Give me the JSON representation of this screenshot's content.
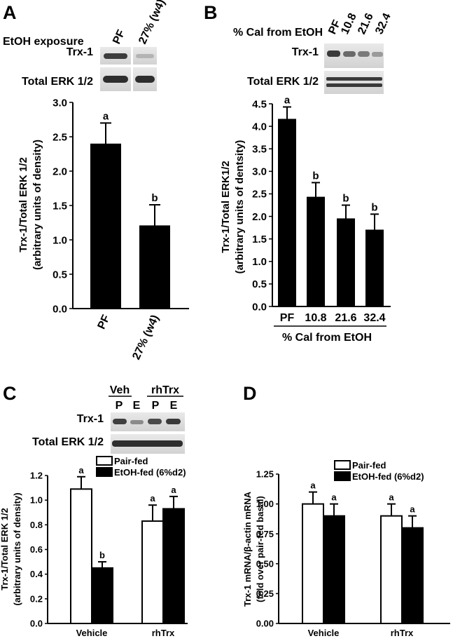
{
  "panels": {
    "A": {
      "letter": "A",
      "exposure_label": "EtOH exposure",
      "lane_labels": [
        "PF",
        "27% (w4)"
      ],
      "blot_labels": [
        "Trx-1",
        "Total ERK 1/2"
      ]
    },
    "B": {
      "letter": "B",
      "header_label": "% Cal from EtOH",
      "lane_labels": [
        "PF",
        "10.8",
        "21.6",
        "32.4"
      ],
      "blot_labels": [
        "Trx-1",
        "Total ERK 1/2"
      ]
    },
    "C": {
      "letter": "C",
      "group_labels": [
        "Veh",
        "rhTrx"
      ],
      "lane_labels": [
        "P",
        "E",
        "P",
        "E"
      ],
      "blot_labels": [
        "Trx-1",
        "Total ERK 1/2"
      ]
    },
    "D": {
      "letter": "D"
    }
  },
  "chart_data": [
    {
      "panel": "A",
      "type": "bar",
      "categories": [
        "PF",
        "27% (w4)"
      ],
      "values": [
        2.39,
        1.2
      ],
      "errors": [
        0.31,
        0.31
      ],
      "significance": [
        "a",
        "b"
      ],
      "ylabel_lines": [
        "Trx-1/Total ERK 1/2",
        "(arbitrary units of density)"
      ],
      "ylim": [
        0,
        3.0
      ],
      "yticks": [
        "0.0",
        "0.5",
        "1.0",
        "1.5",
        "2.0",
        "2.5",
        "3.0"
      ],
      "colors": {
        "bar": "#000000"
      }
    },
    {
      "panel": "B",
      "type": "bar",
      "categories": [
        "PF",
        "10.8",
        "21.6",
        "32.4"
      ],
      "values": [
        4.15,
        2.42,
        1.94,
        1.69
      ],
      "errors": [
        0.28,
        0.33,
        0.31,
        0.36
      ],
      "significance": [
        "a",
        "b",
        "b",
        "b"
      ],
      "xlabel": "% Cal from EtOH",
      "ylabel_lines": [
        "Trx-1/Total ERK1/2",
        "(arbitrary  units of dentsity)"
      ],
      "ylim": [
        0,
        4.5
      ],
      "yticks": [
        "0.0",
        "0.5",
        "1.0",
        "1.5",
        "2.0",
        "2.5",
        "3.0",
        "3.5",
        "4.0",
        "4.5"
      ],
      "colors": {
        "bar": "#000000"
      }
    },
    {
      "panel": "C",
      "type": "bar",
      "categories": [
        "Vehicle",
        "rhTrx"
      ],
      "series": [
        {
          "name": "Pair-fed",
          "values": [
            1.09,
            0.83
          ],
          "errors": [
            0.1,
            0.13
          ],
          "significance": [
            "a",
            "a"
          ],
          "fill": "#ffffff"
        },
        {
          "name": "EtOH-fed (6%d2)",
          "values": [
            0.45,
            0.93
          ],
          "errors": [
            0.05,
            0.1
          ],
          "significance": [
            "b",
            "a"
          ],
          "fill": "#000000"
        }
      ],
      "ylabel_lines": [
        "Trx-1/Total ERK 1/2",
        "(arbitrary units of density)"
      ],
      "ylim": [
        0,
        1.2
      ],
      "yticks": [
        "0.0",
        "0.2",
        "0.4",
        "0.6",
        "0.8",
        "1.0",
        "1.2"
      ],
      "legend_position": "top"
    },
    {
      "panel": "D",
      "type": "bar",
      "categories": [
        "Vehicle",
        "rhTrx"
      ],
      "series": [
        {
          "name": "Pair-fed",
          "values": [
            1.0,
            0.9
          ],
          "errors": [
            0.1,
            0.1
          ],
          "significance": [
            "a",
            "a"
          ],
          "fill": "#ffffff"
        },
        {
          "name": "EtOH-fed (6%d2)",
          "values": [
            0.9,
            0.8
          ],
          "errors": [
            0.1,
            0.1
          ],
          "significance": [
            "a",
            "a"
          ],
          "fill": "#000000"
        }
      ],
      "ylabel_lines": [
        "Trx-1 mRNA/β-actin mRNA",
        "(fold over pair-fed basal)"
      ],
      "ylim": [
        0,
        1.25
      ],
      "yticks": [
        "0.00",
        "0.25",
        "0.50",
        "0.75",
        "1.00",
        "1.25"
      ],
      "legend_position": "top"
    }
  ]
}
